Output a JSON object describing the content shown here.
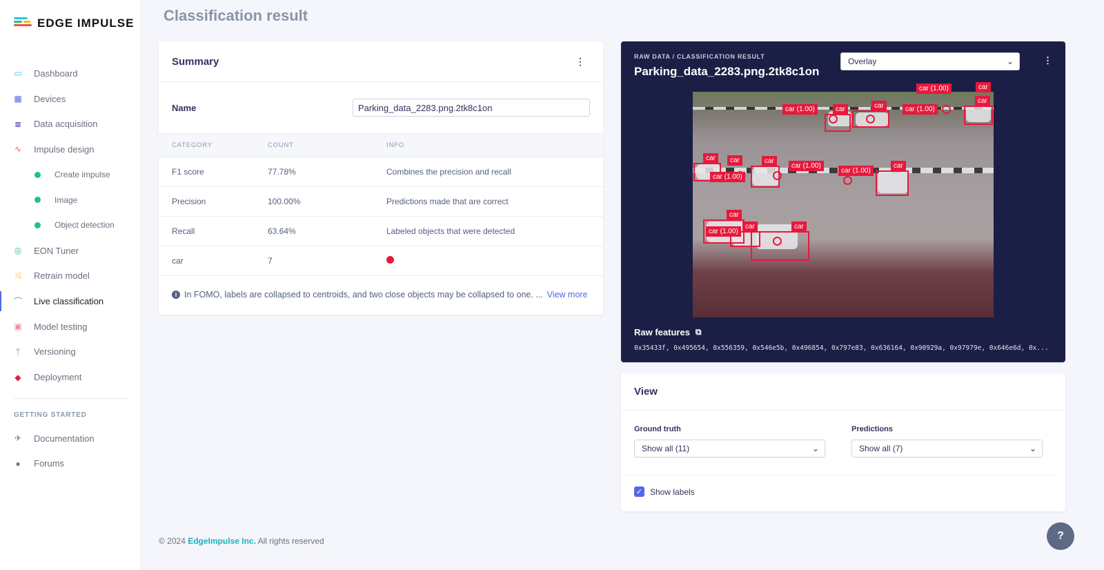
{
  "brand": {
    "name": "EDGE IMPULSE"
  },
  "sidebar": {
    "items": [
      {
        "label": "Dashboard",
        "icon": "monitor-icon",
        "color": "#2ec4e6"
      },
      {
        "label": "Devices",
        "icon": "chip-icon",
        "color": "#5468e7"
      },
      {
        "label": "Data acquisition",
        "icon": "database-icon",
        "color": "#4b2aa8"
      },
      {
        "label": "Impulse design",
        "icon": "pulse-icon",
        "color": "#f5533d"
      },
      {
        "label": "Create impulse",
        "sub": true
      },
      {
        "label": "Image",
        "sub": true
      },
      {
        "label": "Object detection",
        "sub": true
      },
      {
        "label": "EON Tuner",
        "icon": "compass-icon",
        "color": "#1fc47d"
      },
      {
        "label": "Retrain model",
        "icon": "shuffle-icon",
        "color": "#f5b800"
      },
      {
        "label": "Live classification",
        "icon": "live-icon",
        "color": "#1fc47d",
        "active": true
      },
      {
        "label": "Model testing",
        "icon": "clipboard-check-icon",
        "color": "#f08a9a"
      },
      {
        "label": "Versioning",
        "icon": "branch-icon",
        "color": "#5468e7"
      },
      {
        "label": "Deployment",
        "icon": "cube-icon",
        "color": "#e6193c"
      }
    ],
    "section": "GETTING STARTED",
    "extra": [
      {
        "label": "Documentation",
        "icon": "rocket-icon"
      },
      {
        "label": "Forums",
        "icon": "chat-icon"
      }
    ]
  },
  "page": {
    "title": "Classification result"
  },
  "summary": {
    "title": "Summary",
    "name_label": "Name",
    "name_value": "Parking_data_2283.png.2tk8c1on",
    "columns": [
      "CATEGORY",
      "COUNT",
      "INFO"
    ],
    "rows": [
      {
        "category": "F1 score",
        "count": "77.78%",
        "info": "Combines the precision and recall"
      },
      {
        "category": "Precision",
        "count": "100.00%",
        "info": "Predictions made that are correct"
      },
      {
        "category": "Recall",
        "count": "63.64%",
        "info": "Labeled objects that were detected"
      },
      {
        "category": "car",
        "count": "7",
        "info": "",
        "dot_color": "#e6193c"
      }
    ],
    "note": "In FOMO, labels are collapsed to centroids, and two close objects may be collapsed to one. ...",
    "view_more": "View more"
  },
  "result": {
    "breadcrumb": "RAW DATA / CLASSIFICATION RESULT",
    "title": "Parking_data_2283.png.2tk8c1on",
    "mode": "Overlay",
    "gt_label": "car",
    "pred_label": "car (1.00)",
    "box_color": "#e6193c",
    "raw_features_label": "Raw features",
    "raw_features": "0x35433f, 0x495654, 0x556359, 0x546e5b, 0x496854, 0x797e83, 0x636164, 0x90929a, 0x97979e, 0x646e6d, 0x..."
  },
  "view": {
    "title": "View",
    "ground_truth_label": "Ground truth",
    "ground_truth_value": "Show all (11)",
    "predictions_label": "Predictions",
    "predictions_value": "Show all (7)",
    "show_labels": "Show labels",
    "show_labels_checked": true
  },
  "footer": {
    "copyright": "© 2024",
    "company": "EdgeImpulse Inc.",
    "rights": "All rights reserved"
  }
}
